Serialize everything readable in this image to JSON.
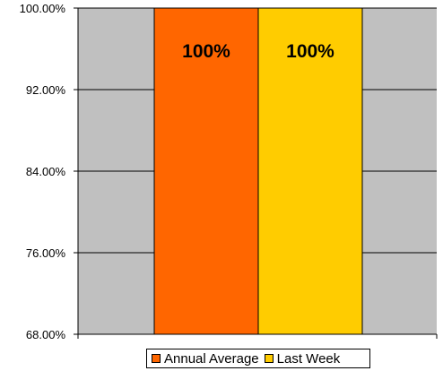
{
  "chart_data": {
    "type": "bar",
    "categories": [
      ""
    ],
    "series": [
      {
        "name": "Annual Average",
        "values": [
          100
        ],
        "color": "#FF6600",
        "data_label": "100%"
      },
      {
        "name": "Last Week",
        "values": [
          100
        ],
        "color": "#FFCC00",
        "data_label": "100%"
      }
    ],
    "ylim": [
      68,
      100
    ],
    "yticks": [
      "100.00%",
      "92.00%",
      "84.00%",
      "76.00%",
      "68.00%"
    ],
    "title": "",
    "xlabel": "",
    "ylabel": "",
    "grid": true,
    "plot_background": "#C0C0C0",
    "legend_position": "bottom"
  }
}
